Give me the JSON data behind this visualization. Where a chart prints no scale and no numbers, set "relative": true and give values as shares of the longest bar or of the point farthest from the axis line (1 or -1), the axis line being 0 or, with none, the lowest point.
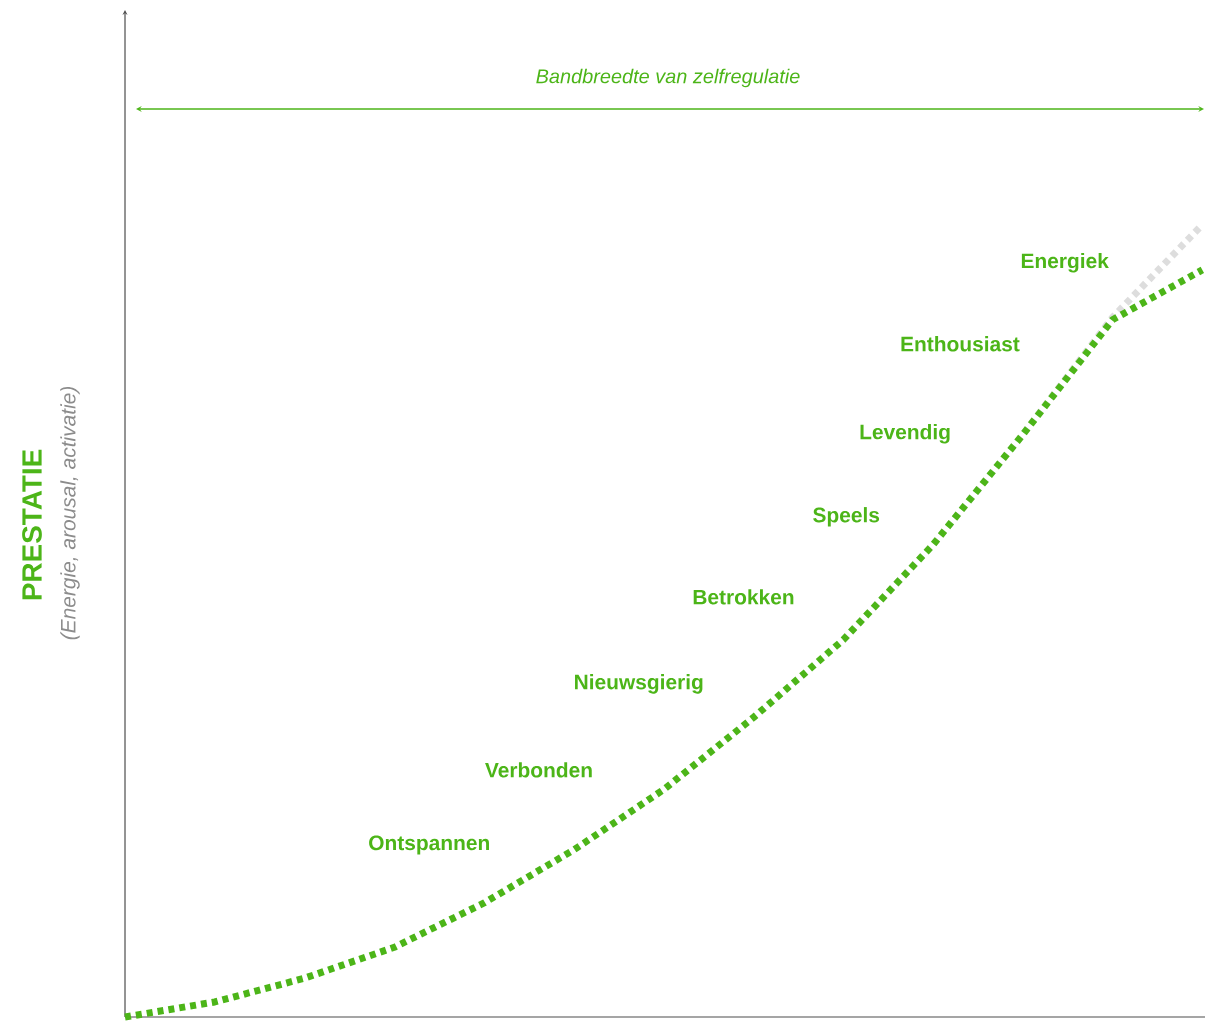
{
  "chart_data": {
    "type": "line",
    "relative": true,
    "title": "Bandbreedte van zelfregulatie",
    "ylabel": "PRESTATIE",
    "annotations": [
      "(Energie, arousal, activatie)",
      "Ontspannen",
      "Verbonden",
      "Nieuwsgierig",
      "Betrokken",
      "Speels",
      "Levendig",
      "Enthousiast",
      "Energiek"
    ],
    "categories": [
      null,
      null,
      null,
      null,
      null,
      null,
      null,
      null,
      null,
      null,
      null,
      null,
      null
    ],
    "line_style": "dotted",
    "series": [
      {
        "color": "#dddddd",
        "values": [
          null,
          null,
          null,
          null,
          null,
          null,
          null,
          null,
          0.476,
          0.596,
          0.735,
          0.883,
          1.0
        ]
      },
      {
        "color": "#4cb518",
        "values": [
          0,
          0.019,
          0.049,
          0.088,
          0.144,
          0.211,
          0.287,
          0.378,
          0.476,
          0.596,
          0.735,
          0.88,
          0.943
        ]
      }
    ]
  }
}
